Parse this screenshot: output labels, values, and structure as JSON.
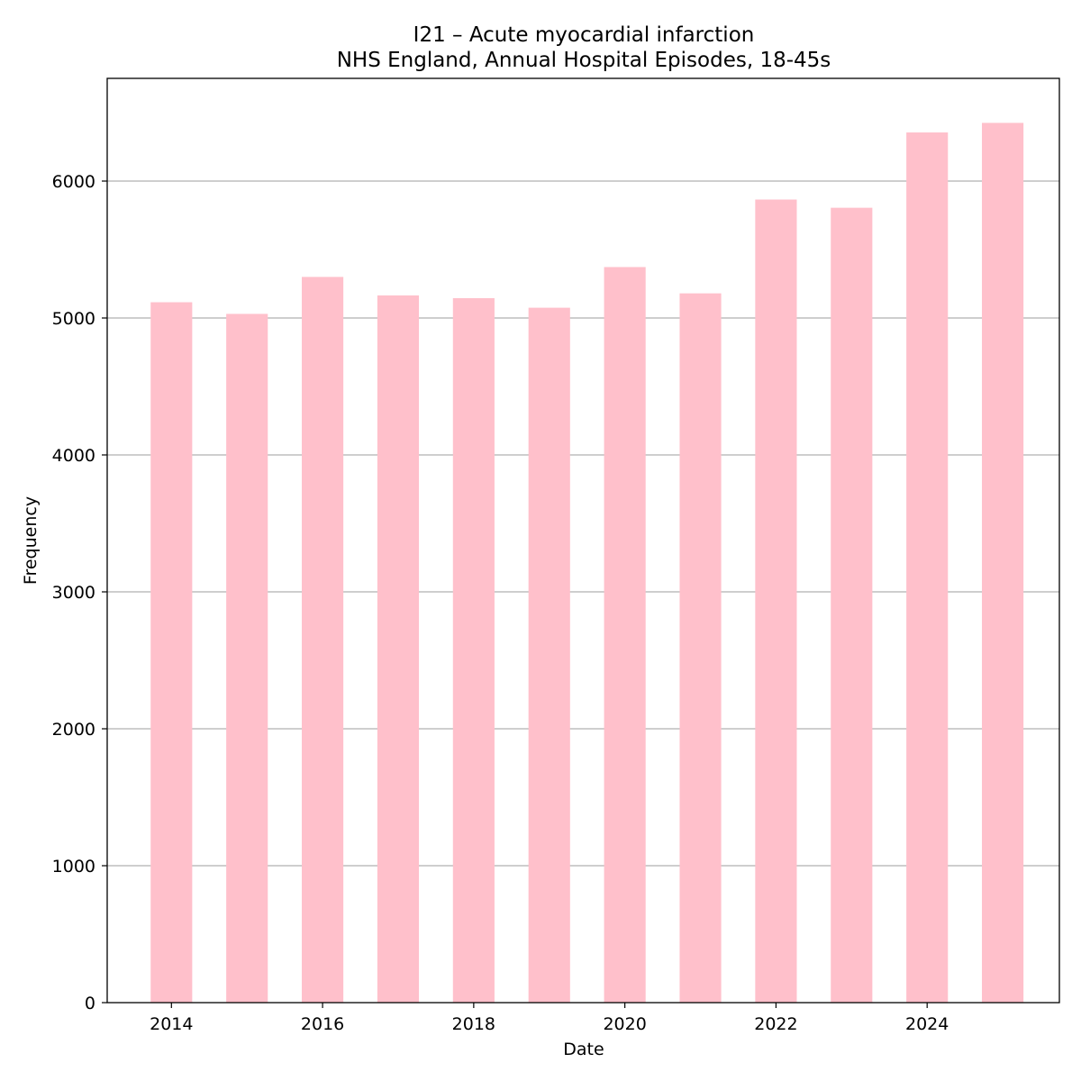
{
  "chart_data": {
    "type": "bar",
    "title": "I21 – Acute myocardial infarction",
    "subtitle": "NHS England, Annual Hospital Episodes, 18-45s",
    "xlabel": "Date",
    "ylabel": "Frequency",
    "categories": [
      "2014",
      "2015",
      "2016",
      "2017",
      "2018",
      "2019",
      "2020",
      "2021",
      "2022",
      "2023",
      "2024",
      "2025"
    ],
    "values": [
      5115,
      5030,
      5300,
      5165,
      5145,
      5075,
      5372,
      5180,
      5865,
      5805,
      6355,
      6425
    ],
    "x_ticks": [
      "2014",
      "2016",
      "2018",
      "2020",
      "2022",
      "2024"
    ],
    "y_ticks": [
      0,
      1000,
      2000,
      3000,
      4000,
      5000,
      6000
    ],
    "xlim": [
      2013.15,
      2025.75
    ],
    "ylim": [
      0,
      6750
    ],
    "grid": "y",
    "bar_color": "#ffc0cb",
    "grid_color": "#b0b0b0"
  }
}
